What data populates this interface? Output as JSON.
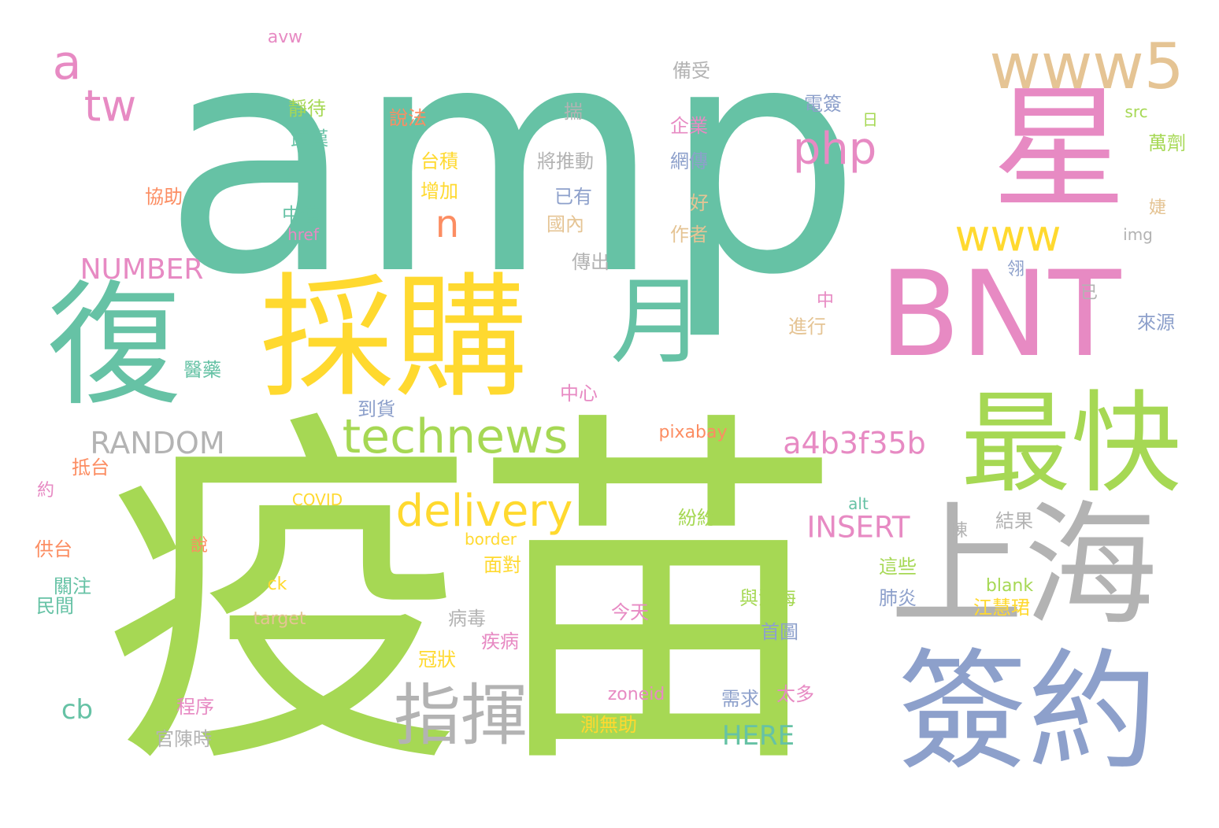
{
  "palette": {
    "green": "#66c2a5",
    "orange": "#fc8d62",
    "blue": "#8da0cb",
    "pink": "#e78ac3",
    "lime": "#a6d854",
    "yellow": "#ffd92f",
    "tan": "#e5c494",
    "gray": "#b3b3b3"
  },
  "words": [
    {
      "text": "amp",
      "color": "green"
    },
    {
      "text": "疫苗",
      "color": "lime"
    },
    {
      "text": "BNT",
      "color": "pink"
    },
    {
      "text": "星",
      "color": "pink"
    },
    {
      "text": "採購",
      "color": "yellow"
    },
    {
      "text": "復",
      "color": "green"
    },
    {
      "text": "上海",
      "color": "gray"
    },
    {
      "text": "簽約",
      "color": "blue"
    },
    {
      "text": "最快",
      "color": "lime"
    },
    {
      "text": "月",
      "color": "green"
    },
    {
      "text": "www5",
      "color": "tan"
    },
    {
      "text": "指揮",
      "color": "gray"
    },
    {
      "text": "technews",
      "color": "lime"
    },
    {
      "text": "delivery",
      "color": "yellow"
    },
    {
      "text": "php",
      "color": "pink"
    },
    {
      "text": "www",
      "color": "yellow"
    },
    {
      "text": "tw",
      "color": "pink"
    },
    {
      "text": "a",
      "color": "pink"
    },
    {
      "text": "RANDOM",
      "color": "gray"
    },
    {
      "text": "a4b3f35b",
      "color": "pink"
    },
    {
      "text": "INSERT",
      "color": "pink"
    },
    {
      "text": "NUMBER",
      "color": "pink"
    },
    {
      "text": "n",
      "color": "orange"
    },
    {
      "text": "HERE",
      "color": "green"
    },
    {
      "text": "cb",
      "color": "green"
    },
    {
      "text": "avw",
      "color": "pink"
    },
    {
      "text": "備受",
      "color": "gray"
    },
    {
      "text": "揣",
      "color": "gray"
    },
    {
      "text": "說法",
      "color": "orange"
    },
    {
      "text": "靜待",
      "color": "lime"
    },
    {
      "text": "武漢",
      "color": "green"
    },
    {
      "text": "企業",
      "color": "pink"
    },
    {
      "text": "網傳",
      "color": "blue"
    },
    {
      "text": "電簽",
      "color": "blue"
    },
    {
      "text": "日",
      "color": "lime"
    },
    {
      "text": "src",
      "color": "lime"
    },
    {
      "text": "萬劑",
      "color": "lime"
    },
    {
      "text": "台積",
      "color": "yellow"
    },
    {
      "text": "增加",
      "color": "yellow"
    },
    {
      "text": "將推動",
      "color": "gray"
    },
    {
      "text": "協助",
      "color": "orange"
    },
    {
      "text": "已有",
      "color": "blue"
    },
    {
      "text": "國內",
      "color": "tan"
    },
    {
      "text": "好",
      "color": "tan"
    },
    {
      "text": "作者",
      "color": "tan"
    },
    {
      "text": "中僅",
      "color": "green"
    },
    {
      "text": "href",
      "color": "pink"
    },
    {
      "text": "img",
      "color": "gray"
    },
    {
      "text": "婕",
      "color": "tan"
    },
    {
      "text": "傳出",
      "color": "gray"
    },
    {
      "text": "翎",
      "color": "blue"
    },
    {
      "text": "已",
      "color": "gray"
    },
    {
      "text": "中",
      "color": "pink"
    },
    {
      "text": "進行",
      "color": "tan"
    },
    {
      "text": "來源",
      "color": "blue"
    },
    {
      "text": "醫藥",
      "color": "green"
    },
    {
      "text": "中心",
      "color": "pink"
    },
    {
      "text": "到貨",
      "color": "blue"
    },
    {
      "text": "pixabay",
      "color": "orange"
    },
    {
      "text": "抵台",
      "color": "orange"
    },
    {
      "text": "約",
      "color": "pink"
    },
    {
      "text": "COVID",
      "color": "yellow"
    },
    {
      "text": "alt",
      "color": "green"
    },
    {
      "text": "結果",
      "color": "gray"
    },
    {
      "text": "紛紛",
      "color": "lime"
    },
    {
      "text": "陳",
      "color": "gray"
    },
    {
      "text": "供台",
      "color": "orange"
    },
    {
      "text": "border",
      "color": "yellow"
    },
    {
      "text": "說",
      "color": "orange"
    },
    {
      "text": "面對",
      "color": "yellow"
    },
    {
      "text": "這些",
      "color": "lime"
    },
    {
      "text": "關注",
      "color": "green"
    },
    {
      "text": "民間",
      "color": "green"
    },
    {
      "text": "ck",
      "color": "yellow"
    },
    {
      "text": "blank",
      "color": "lime"
    },
    {
      "text": "與鴻海",
      "color": "lime"
    },
    {
      "text": "肺炎",
      "color": "blue"
    },
    {
      "text": "江慧珺",
      "color": "yellow"
    },
    {
      "text": "今天",
      "color": "pink"
    },
    {
      "text": "target",
      "color": "tan"
    },
    {
      "text": "病毒",
      "color": "gray"
    },
    {
      "text": "首圖",
      "color": "blue"
    },
    {
      "text": "疾病",
      "color": "pink"
    },
    {
      "text": "冠狀",
      "color": "yellow"
    },
    {
      "text": "zoneid",
      "color": "pink"
    },
    {
      "text": "需求",
      "color": "blue"
    },
    {
      "text": "太多",
      "color": "pink"
    },
    {
      "text": "程序",
      "color": "pink"
    },
    {
      "text": "測無助",
      "color": "yellow"
    },
    {
      "text": "官陳時",
      "color": "gray"
    }
  ]
}
